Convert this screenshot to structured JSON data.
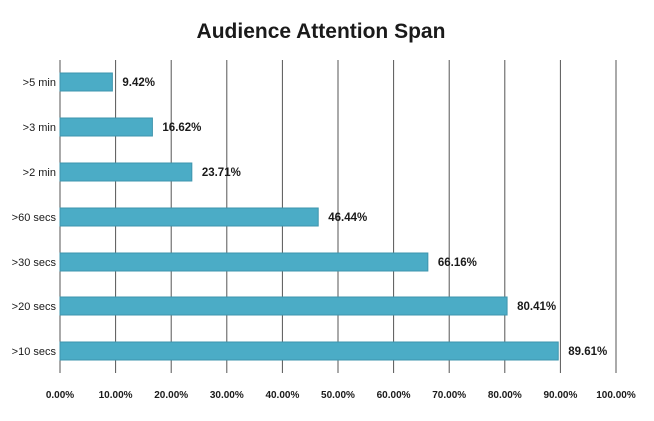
{
  "chart_data": {
    "type": "bar",
    "orientation": "horizontal",
    "title": "Audience Attention Span",
    "xlabel": "",
    "ylabel": "",
    "categories": [
      ">5 min",
      ">3 min",
      ">2 min",
      ">60 secs",
      ">30 secs",
      ">20 secs",
      ">10 secs"
    ],
    "values": [
      9.42,
      16.62,
      23.71,
      46.44,
      66.16,
      80.41,
      89.61
    ],
    "data_labels": [
      "9.42%",
      "16.62%",
      "23.71%",
      "46.44%",
      "66.16%",
      "80.41%",
      "89.61%"
    ],
    "xlim": [
      0,
      100
    ],
    "x_ticks": [
      0,
      10,
      20,
      30,
      40,
      50,
      60,
      70,
      80,
      90,
      100
    ],
    "x_tick_labels": [
      "0.00%",
      "10.00%",
      "20.00%",
      "30.00%",
      "40.00%",
      "50.00%",
      "60.00%",
      "70.00%",
      "80.00%",
      "90.00%",
      "100.00%"
    ],
    "grid": "vertical",
    "legend": "none",
    "colors": {
      "bar": "#4BACC6",
      "bar_border": "#3E95AD",
      "grid": "#555555",
      "text": "#1a1a1a"
    }
  }
}
